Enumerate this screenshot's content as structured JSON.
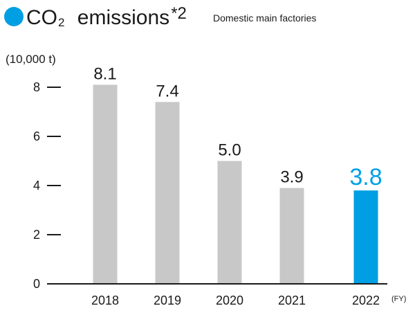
{
  "header": {
    "title_main": "CO",
    "title_sub": "2",
    "title_rest": " emissions",
    "title_note": "*2",
    "subtitle": "Domestic main factories"
  },
  "colors": {
    "bar_default": "#c8c8c8",
    "bar_highlight": "#009fe3",
    "accent": "#009fe3",
    "axis": "#1a1a1a"
  },
  "chart_data": {
    "type": "bar",
    "ylabel": "(10,000 t)",
    "xlabel": "(FY)",
    "categories": [
      "2018",
      "2019",
      "2020",
      "2021",
      "2022"
    ],
    "values": [
      8.1,
      7.4,
      5.0,
      3.9,
      3.8
    ],
    "value_labels": [
      "8.1",
      "7.4",
      "5.0",
      "3.9",
      "3.8"
    ],
    "highlight_index": 4,
    "ylim": [
      0,
      8
    ],
    "yticks": [
      0,
      2,
      4,
      6,
      8
    ],
    "grid": false,
    "legend": "none"
  }
}
